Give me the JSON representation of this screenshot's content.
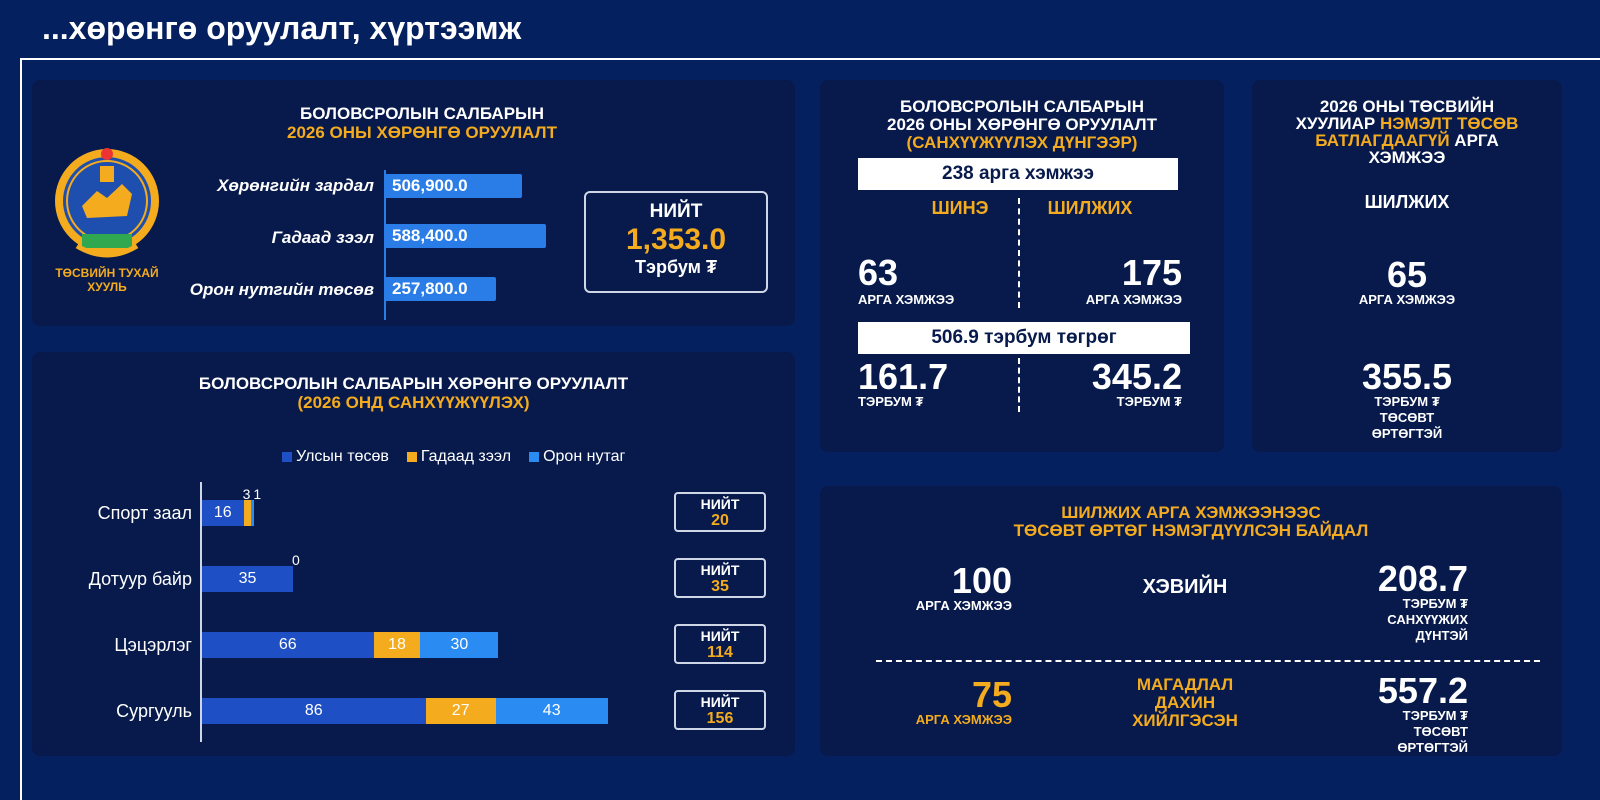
{
  "page": {
    "title": "...хөрөнгө оруулалт, хүртээмж"
  },
  "card_summary": {
    "title_line1": "БОЛОВСРОЛЫН САЛБАРЫН",
    "title_line2": "2026 ОНЫ ХӨРӨНГӨ ОРУУЛАЛТ",
    "emblem_label_line1": "ТӨСВИЙН ТУХАЙ",
    "emblem_label_line2": "ХУУЛЬ",
    "bars": [
      {
        "label": "Хөрөнгийн зардал",
        "value_text": "506,900.0",
        "value": 506900.0
      },
      {
        "label": "Гадаад зээл",
        "value_text": "588,400.0",
        "value": 588400.0
      },
      {
        "label": "Орон нутгийн төсөв",
        "value_text": "257,800.0",
        "value": 257800.0
      }
    ],
    "total_label": "НИЙТ",
    "total_value": "1,353.0",
    "total_unit": "Тэрбум ₮"
  },
  "card_chart": {
    "title_line1": "БОЛОВСРОЛЫН САЛБАРЫН ХӨРӨНГӨ ОРУУЛАЛТ",
    "title_line2": "(2026 ОНД САНХҮҮЖҮҮЛЭХ)",
    "total_label": "НИЙТ"
  },
  "chart_data": {
    "type": "bar",
    "orientation": "horizontal",
    "stacked": true,
    "categories": [
      "Спорт заал",
      "Дотуур байр",
      "Цэцэрлэг",
      "Сургууль"
    ],
    "series": [
      {
        "name": "Улсын төсөв",
        "color": "#1f4fc4",
        "values": [
          16,
          35,
          66,
          86
        ]
      },
      {
        "name": "Гадаад зээл",
        "color": "#f4ac1e",
        "values": [
          3,
          0,
          18,
          27
        ]
      },
      {
        "name": "Орон нутаг",
        "color": "#2a8bf2",
        "values": [
          1,
          null,
          30,
          43
        ]
      }
    ],
    "totals": [
      20,
      35,
      114,
      156
    ],
    "legend_position": "top",
    "grid": false
  },
  "card_financing": {
    "title_line1": "БОЛОВСРОЛЫН САЛБАРЫН",
    "title_line2": "2026 ОНЫ ХӨРӨНГӨ ОРУУЛАЛТ",
    "title_line3": "(САНХҮҮЖҮҮЛЭХ ДҮНГЭЭР)",
    "band1": "238 арга хэмжээ",
    "col_new": "ШИНЭ",
    "col_transfer": "ШИЛЖИХ",
    "new_count": "63",
    "transfer_count": "175",
    "count_unit": "АРГА ХЭМЖЭЭ",
    "band2": "506.9 тэрбум төгрөг",
    "new_amount": "161.7",
    "transfer_amount": "345.2",
    "amount_unit": "ТЭРБУМ ₮"
  },
  "card_budget": {
    "title_line1": "2026 ОНЫ ТӨСВИЙН",
    "title_line2a": "ХУУЛИАР ",
    "title_line2b": "НЭМЭЛТ ТӨСӨВ",
    "title_line3a": "БАТЛАГДААГҮЙ",
    "title_line3b": " АРГА",
    "title_line4": "ХЭМЖЭЭ",
    "subtitle": "ШИЛЖИХ",
    "count": "65",
    "count_unit": "АРГА ХЭМЖЭЭ",
    "amount": "355.5",
    "amount_unit_line1": "ТЭРБУМ ₮",
    "amount_unit_line2": "ТӨСӨВТ",
    "amount_unit_line3": "ӨРТӨГТЭЙ"
  },
  "card_increase": {
    "title_line1": "ШИЛЖИХ АРГА ХЭМЖЭЭНЭЭС",
    "title_line2": "ТӨСӨВТ ӨРТӨГ НЭМЭГДҮҮЛСЭН БАЙДАЛ",
    "row1_count": "100",
    "row1_count_unit": "АРГА ХЭМЖЭЭ",
    "row1_status": "ХЭВИЙН",
    "row1_amount": "208.7",
    "row1_unit_line1": "ТЭРБУМ ₮",
    "row1_unit_line2": "САНХҮҮЖИХ",
    "row1_unit_line3": "ДҮНТЭЙ",
    "row2_count": "75",
    "row2_count_unit": "АРГА ХЭМЖЭЭ",
    "row2_status_line1": "МАГАДЛАЛ",
    "row2_status_line2": "ДАХИН",
    "row2_status_line3": "ХИЙЛГЭСЭН",
    "row2_amount": "557.2",
    "row2_unit_line1": "ТЭРБУМ ₮",
    "row2_unit_line2": "ТӨСӨВТ",
    "row2_unit_line3": "ӨРТӨГТЭЙ"
  }
}
